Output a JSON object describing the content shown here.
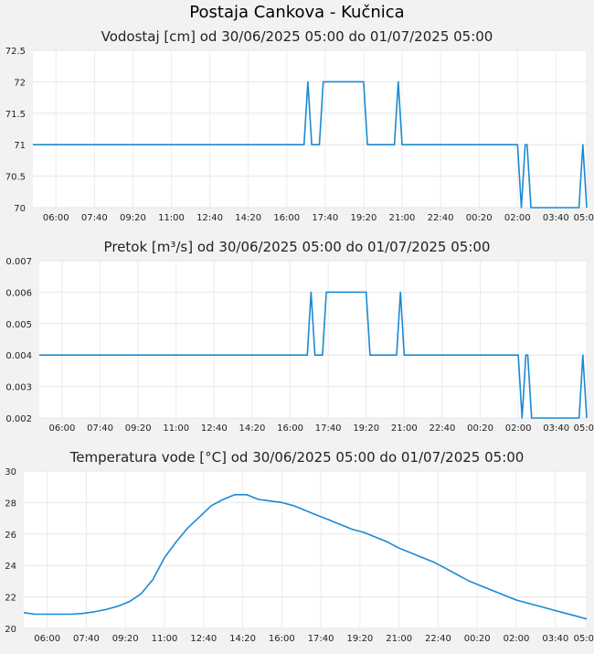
{
  "title": "Postaja Cankova - Kučnica",
  "chart_data": [
    {
      "type": "line",
      "title": "Vodostaj [cm] od 30/06/2025 05:00 do 01/07/2025 05:00",
      "color": "#1a8ad4",
      "ylim": [
        70,
        72.5
      ],
      "yticks": [
        "72.5",
        "72",
        "71.5",
        "71",
        "70.5",
        "70"
      ],
      "xlim": [
        "05:00",
        "05:00"
      ],
      "xticks": [
        "06:00",
        "07:40",
        "09:20",
        "11:00",
        "12:40",
        "14:20",
        "16:00",
        "17:40",
        "19:20",
        "21:00",
        "22:40",
        "00:20",
        "02:00",
        "03:40",
        "05:00"
      ],
      "series": [
        {
          "x": [
            "05:00",
            "16:45",
            "16:50",
            "16:55",
            "17:00",
            "17:05",
            "17:15",
            "17:25",
            "17:30",
            "17:35",
            "19:20",
            "19:25",
            "19:30",
            "19:35",
            "20:40",
            "20:45",
            "20:50",
            "20:55",
            "21:00",
            "02:00",
            "02:05",
            "02:10",
            "02:15",
            "02:20",
            "02:25",
            "02:30",
            "02:35",
            "02:40",
            "02:45",
            "02:50",
            "02:55",
            "04:40",
            "04:45",
            "04:50",
            "04:55",
            "05:00"
          ],
          "values": [
            71,
            71,
            71.5,
            72,
            71.5,
            71,
            71,
            71,
            71.5,
            72,
            72,
            71.5,
            71,
            71,
            71,
            71.5,
            72,
            71.5,
            71,
            71,
            70.5,
            70,
            70.5,
            71,
            71,
            70.5,
            70,
            70,
            70,
            70,
            70,
            70,
            70.5,
            71,
            70.5,
            70
          ]
        }
      ]
    },
    {
      "type": "line",
      "title": "Pretok [m³/s] od 30/06/2025 05:00 do 01/07/2025 05:00",
      "color": "#1a8ad4",
      "ylim": [
        0.002,
        0.007
      ],
      "yticks": [
        "0.007",
        "0.006",
        "0.005",
        "0.004",
        "0.003",
        "0.002"
      ],
      "xlim": [
        "05:00",
        "05:00"
      ],
      "xticks": [
        "06:00",
        "07:40",
        "09:20",
        "11:00",
        "12:40",
        "14:20",
        "16:00",
        "17:40",
        "19:20",
        "21:00",
        "22:40",
        "00:20",
        "02:00",
        "03:40",
        "05:00"
      ],
      "series": [
        {
          "x": [
            "05:00",
            "16:45",
            "16:50",
            "16:55",
            "17:00",
            "17:05",
            "17:15",
            "17:25",
            "17:30",
            "17:35",
            "19:20",
            "19:25",
            "19:30",
            "19:35",
            "20:40",
            "20:45",
            "20:50",
            "20:55",
            "21:00",
            "02:00",
            "02:05",
            "02:10",
            "02:15",
            "02:20",
            "02:25",
            "02:30",
            "02:35",
            "02:40",
            "02:45",
            "02:50",
            "02:55",
            "04:40",
            "04:45",
            "04:50",
            "04:55",
            "05:00"
          ],
          "values": [
            0.004,
            0.004,
            0.005,
            0.006,
            0.005,
            0.004,
            0.004,
            0.004,
            0.005,
            0.006,
            0.006,
            0.005,
            0.004,
            0.004,
            0.004,
            0.005,
            0.006,
            0.005,
            0.004,
            0.004,
            0.003,
            0.002,
            0.003,
            0.004,
            0.004,
            0.003,
            0.002,
            0.002,
            0.002,
            0.002,
            0.002,
            0.002,
            0.003,
            0.004,
            0.003,
            0.002
          ]
        }
      ]
    },
    {
      "type": "line",
      "title": "Temperatura vode [°C] od 30/06/2025 05:00 do 01/07/2025 05:00",
      "color": "#1a8ad4",
      "ylim": [
        20,
        30
      ],
      "yticks": [
        "30",
        "28",
        "26",
        "24",
        "22",
        "20"
      ],
      "xlim": [
        "05:00",
        "05:00"
      ],
      "xticks": [
        "06:00",
        "07:40",
        "09:20",
        "11:00",
        "12:40",
        "14:20",
        "16:00",
        "17:40",
        "19:20",
        "21:00",
        "22:40",
        "00:20",
        "02:00",
        "03:40",
        "05:00"
      ],
      "series": [
        {
          "x": [
            "05:00",
            "05:30",
            "06:00",
            "06:30",
            "07:00",
            "07:30",
            "08:00",
            "08:30",
            "09:00",
            "09:30",
            "10:00",
            "10:30",
            "11:00",
            "11:30",
            "12:00",
            "12:30",
            "13:00",
            "13:30",
            "14:00",
            "14:30",
            "15:00",
            "15:30",
            "16:00",
            "16:30",
            "17:00",
            "17:30",
            "18:00",
            "18:30",
            "19:00",
            "19:30",
            "20:00",
            "20:30",
            "21:00",
            "21:30",
            "22:00",
            "22:30",
            "23:00",
            "23:30",
            "00:00",
            "00:30",
            "01:00",
            "01:30",
            "02:00",
            "02:30",
            "03:00",
            "03:30",
            "04:00",
            "04:30",
            "05:00"
          ],
          "values": [
            21.0,
            20.9,
            20.9,
            20.9,
            20.9,
            20.95,
            21.05,
            21.2,
            21.4,
            21.7,
            22.2,
            23.1,
            24.5,
            25.5,
            26.4,
            27.1,
            27.8,
            28.2,
            28.5,
            28.5,
            28.2,
            28.1,
            28.0,
            27.8,
            27.5,
            27.2,
            26.9,
            26.6,
            26.3,
            26.1,
            25.8,
            25.5,
            25.1,
            24.8,
            24.5,
            24.2,
            23.8,
            23.4,
            23.0,
            22.7,
            22.4,
            22.1,
            21.8,
            21.6,
            21.4,
            21.2,
            21.0,
            20.8,
            20.6
          ]
        }
      ]
    }
  ]
}
